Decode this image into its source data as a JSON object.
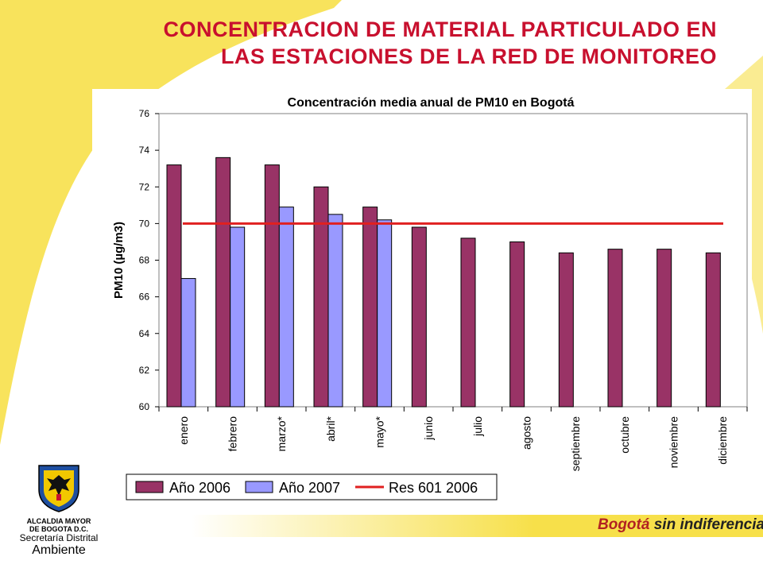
{
  "slide": {
    "title_line1": "CONCENTRACION DE MATERIAL PARTICULADO EN",
    "title_line2": "LAS ESTACIONES DE LA RED DE MONITOREO",
    "accent_color": "#c8102e",
    "background_accent": "#f7e04a"
  },
  "logo": {
    "line1": "ALCALDIA MAYOR",
    "line2": "DE BOGOTA D.C.",
    "line3": "Secretaría Distrital",
    "line4": "Ambiente"
  },
  "brand": {
    "part1": "Bogotá",
    "part2": "sin indiferencia"
  },
  "chart_data": {
    "type": "bar",
    "title": "Concentración media anual de PM10 en Bogotá",
    "xlabel": "",
    "ylabel": "PM10 (µg/m3)",
    "ylim": [
      60,
      76
    ],
    "yticks": [
      60,
      62,
      64,
      66,
      68,
      70,
      72,
      74,
      76
    ],
    "categories": [
      "enero",
      "febrero",
      "marzo*",
      "abril*",
      "mayo*",
      "junio",
      "julio",
      "agosto",
      "septiembre",
      "octubre",
      "noviembre",
      "diciembre"
    ],
    "series": [
      {
        "name": "Año 2006",
        "color": "#993366",
        "values": [
          73.2,
          73.6,
          73.2,
          72.0,
          70.9,
          69.8,
          69.2,
          69.0,
          68.4,
          68.6,
          68.6,
          68.4
        ]
      },
      {
        "name": "Año 2007",
        "color": "#9999ff",
        "values": [
          67.0,
          69.8,
          70.9,
          70.5,
          70.2,
          null,
          null,
          null,
          null,
          null,
          null,
          null
        ]
      }
    ],
    "reference_line": {
      "name": "Res 601 2006",
      "value": 70,
      "color": "#e02020"
    },
    "grid": false,
    "legend_position": "bottom"
  }
}
